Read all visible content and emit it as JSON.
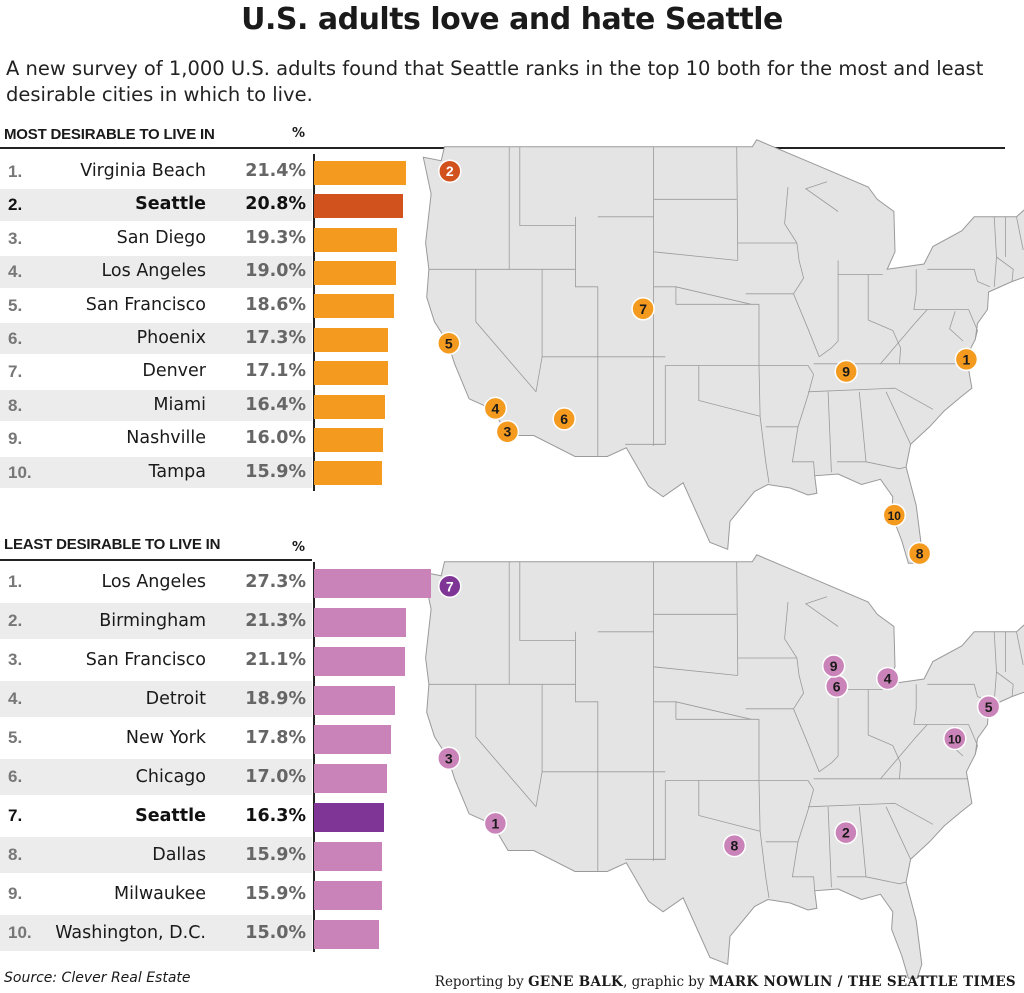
{
  "title": "U.S. adults love and hate Seattle",
  "subtitle": "A new survey of 1,000 U.S. adults found that Seattle ranks in the top 10 both for the most and least desirable cities in which to live.",
  "source": "Source: Clever Real Estate",
  "credit": {
    "reporting_prefix": "Reporting by",
    "reporter": "GENE BALK",
    "graphic_prefix": ", graphic by",
    "artist": "MARK NOWLIN / THE SEATTLE TIMES"
  },
  "colors": {
    "most_bar": "#f39a1f",
    "most_highlight": "#d2521e",
    "least_bar": "#c983b8",
    "least_highlight": "#7f3596",
    "map_fill": "#e4e4e4",
    "map_stroke": "#9a9a9a"
  },
  "chart_data": [
    {
      "type": "bar",
      "orientation": "horizontal",
      "title": "MOST DESIRABLE TO LIVE IN",
      "unit": "%",
      "highlight": "Seattle",
      "ranks": [
        "1.",
        "2.",
        "3.",
        "4.",
        "5.",
        "6.",
        "7.",
        "8.",
        "9.",
        "10."
      ],
      "categories": [
        "Virginia Beach",
        "Seattle",
        "San Diego",
        "Los Angeles",
        "San Francisco",
        "Phoenix",
        "Denver",
        "Miami",
        "Nashville",
        "Tampa"
      ],
      "values": [
        21.4,
        20.8,
        19.3,
        19.0,
        18.6,
        17.3,
        17.1,
        16.4,
        16.0,
        15.9
      ],
      "labels": [
        "21.4%",
        "20.8%",
        "19.3%",
        "19.0%",
        "18.6%",
        "17.3%",
        "17.1%",
        "16.4%",
        "16.0%",
        "15.9%"
      ]
    },
    {
      "type": "bar",
      "orientation": "horizontal",
      "title": "LEAST DESIRABLE TO LIVE IN",
      "unit": "%",
      "highlight": "Seattle",
      "ranks": [
        "1.",
        "2.",
        "3.",
        "4.",
        "5.",
        "6.",
        "7.",
        "8.",
        "9.",
        "10."
      ],
      "categories": [
        "Los Angeles",
        "Birmingham",
        "San Francisco",
        "Detroit",
        "New York",
        "Chicago",
        "Seattle",
        "Dallas",
        "Milwaukee",
        "Washington, D.C."
      ],
      "values": [
        27.3,
        21.3,
        21.1,
        18.9,
        17.8,
        17.0,
        16.3,
        15.9,
        15.9,
        15.0
      ],
      "labels": [
        "27.3%",
        "21.3%",
        "21.1%",
        "18.9%",
        "17.8%",
        "17.0%",
        "16.3%",
        "15.9%",
        "15.9%",
        "15.0%"
      ]
    }
  ],
  "maps": [
    {
      "markers": [
        {
          "label": "1",
          "city": "Virginia Beach",
          "lon": -76.0,
          "lat": 36.85
        },
        {
          "label": "2",
          "city": "Seattle",
          "lon": -122.33,
          "lat": 47.6,
          "highlight": true
        },
        {
          "label": "3",
          "city": "San Diego",
          "lon": -117.16,
          "lat": 32.72
        },
        {
          "label": "4",
          "city": "Los Angeles",
          "lon": -118.24,
          "lat": 34.05
        },
        {
          "label": "5",
          "city": "San Francisco",
          "lon": -122.42,
          "lat": 37.77
        },
        {
          "label": "6",
          "city": "Phoenix",
          "lon": -112.07,
          "lat": 33.45
        },
        {
          "label": "7",
          "city": "Denver",
          "lon": -104.99,
          "lat": 39.74
        },
        {
          "label": "8",
          "city": "Miami",
          "lon": -80.19,
          "lat": 25.76
        },
        {
          "label": "9",
          "city": "Nashville",
          "lon": -86.78,
          "lat": 36.16
        },
        {
          "label": "10",
          "city": "Tampa",
          "lon": -82.46,
          "lat": 27.95
        }
      ]
    },
    {
      "markers": [
        {
          "label": "1",
          "city": "Los Angeles",
          "lon": -118.24,
          "lat": 34.05
        },
        {
          "label": "2",
          "city": "Birmingham",
          "lon": -86.8,
          "lat": 33.52
        },
        {
          "label": "3",
          "city": "San Francisco",
          "lon": -122.42,
          "lat": 37.77
        },
        {
          "label": "4",
          "city": "Detroit",
          "lon": -83.05,
          "lat": 42.33
        },
        {
          "label": "5",
          "city": "New York",
          "lon": -74.0,
          "lat": 40.71
        },
        {
          "label": "6",
          "city": "Chicago",
          "lon": -87.63,
          "lat": 41.88
        },
        {
          "label": "7",
          "city": "Seattle",
          "lon": -122.33,
          "lat": 47.6,
          "highlight": true
        },
        {
          "label": "8",
          "city": "Dallas",
          "lon": -96.8,
          "lat": 32.78
        },
        {
          "label": "9",
          "city": "Milwaukee",
          "lon": -87.9,
          "lat": 43.04
        },
        {
          "label": "10",
          "city": "Washington, D.C.",
          "lon": -77.04,
          "lat": 38.9
        }
      ]
    }
  ]
}
